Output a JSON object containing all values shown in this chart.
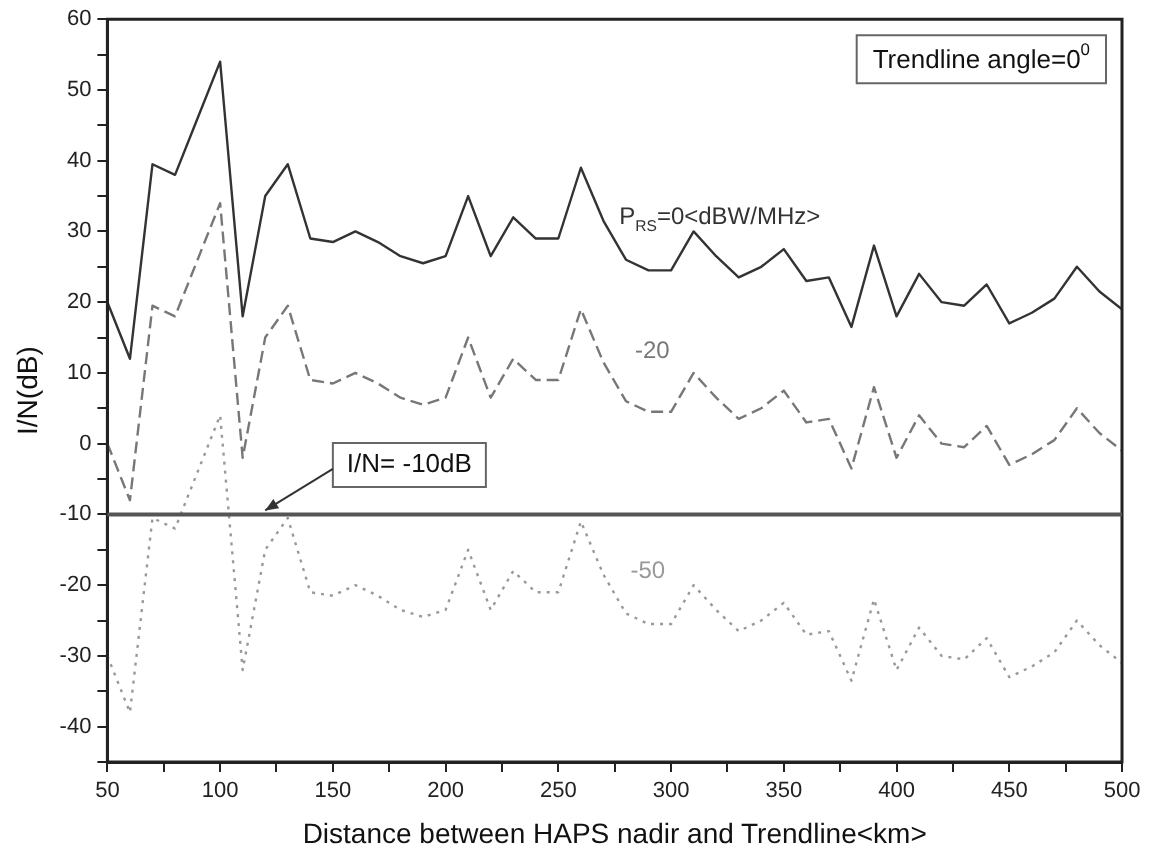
{
  "chart_data": {
    "type": "line",
    "xlabel": "Distance between HAPS nadir and Trendline<km>",
    "ylabel": "I/N(dB)",
    "x": [
      50,
      60,
      70,
      80,
      90,
      100,
      110,
      120,
      130,
      140,
      150,
      160,
      170,
      180,
      190,
      200,
      210,
      220,
      230,
      240,
      250,
      260,
      270,
      280,
      290,
      300,
      310,
      320,
      330,
      340,
      350,
      360,
      370,
      380,
      390,
      400,
      410,
      420,
      430,
      440,
      450,
      460,
      470,
      480,
      490,
      500
    ],
    "series": [
      {
        "name": "P$_{RS}$=0<dBW/MHz>",
        "color": "#333333",
        "line_style": "solid",
        "values": [
          20,
          12,
          39.5,
          38,
          46,
          54,
          18,
          35,
          39.5,
          29,
          28.5,
          30,
          28.5,
          26.5,
          25.5,
          26.5,
          35,
          26.5,
          32,
          29,
          29,
          39,
          31.5,
          26,
          24.5,
          24.5,
          30,
          26.5,
          23.5,
          25,
          27.5,
          23,
          23.5,
          16.5,
          28,
          18,
          24,
          20,
          19.5,
          22.5,
          17,
          18.5,
          20.5,
          25,
          21.5,
          19
        ]
      },
      {
        "name": "-20",
        "color": "#777777",
        "line_style": "dashed",
        "values": [
          0,
          -8,
          19.5,
          18,
          26,
          34,
          -2,
          15,
          19.5,
          9,
          8.5,
          10,
          8.5,
          6.5,
          5.5,
          6.5,
          15,
          6.5,
          12,
          9,
          9,
          19,
          11.5,
          6,
          4.5,
          4.5,
          10,
          6.5,
          3.5,
          5,
          7.5,
          3,
          3.5,
          -3.5,
          8,
          -2,
          4,
          0,
          -0.5,
          2.5,
          -3,
          -1.5,
          0.5,
          5,
          1.5,
          -1
        ]
      },
      {
        "name": "-50",
        "color": "#999999",
        "line_style": "dotted",
        "values": [
          -30,
          -38,
          -10.5,
          -12,
          -4,
          4,
          -32,
          -15,
          -10.5,
          -21,
          -21.5,
          -20,
          -21.5,
          -23.5,
          -24.5,
          -23.5,
          -15,
          -23.5,
          -18,
          -21,
          -21,
          -11,
          -18.5,
          -24,
          -25.5,
          -25.5,
          -20,
          -23.5,
          -26.5,
          -25,
          -22.5,
          -27,
          -26.5,
          -33.5,
          -22,
          -32,
          -26,
          -30,
          -30.5,
          -27.5,
          -33,
          -31.5,
          -29.5,
          -25,
          -28.5,
          -31
        ]
      }
    ],
    "xlim": [
      50,
      500
    ],
    "xticks": [
      50,
      {
        "value": 75,
        "label": null
      },
      100,
      {
        "value": 125,
        "label": null
      },
      150,
      {
        "value": 175,
        "label": null
      },
      200,
      {
        "value": 225,
        "label": null
      },
      250,
      {
        "value": 275,
        "label": null
      },
      300,
      {
        "value": 325,
        "label": null
      },
      350,
      {
        "value": 375,
        "label": null
      },
      400,
      {
        "value": 425,
        "label": null
      },
      450,
      {
        "value": 475,
        "label": null
      },
      500
    ],
    "ylim": [
      -45,
      60
    ],
    "yticks": [
      {
        "value": -45,
        "label": null
      },
      -40,
      {
        "value": -35,
        "label": null
      },
      -30,
      {
        "value": -25,
        "label": null
      },
      -20,
      {
        "value": -15,
        "label": null
      },
      -10,
      {
        "value": -5,
        "label": null
      },
      0,
      {
        "value": 5,
        "label": null
      },
      10,
      {
        "value": 15,
        "label": null
      },
      20,
      {
        "value": 25,
        "label": null
      },
      30,
      {
        "value": 35,
        "label": null
      },
      40,
      {
        "value": 45,
        "label": null
      },
      50,
      {
        "value": 55,
        "label": null
      },
      60
    ],
    "ref_lines": [
      {
        "axis": "y",
        "value": -10,
        "label": "I/N= -10dB",
        "color": "#555555",
        "line_style": "solid"
      }
    ],
    "annotations": [
      "Trendline angle=0$^{0}$"
    ],
    "grid": false,
    "legend": false,
    "marker": "none"
  }
}
